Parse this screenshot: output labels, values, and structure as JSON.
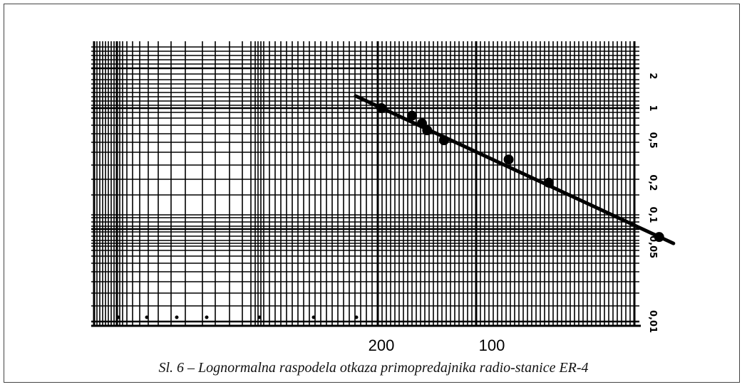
{
  "caption": "Sl. 6 – Lognormalna raspodela otkaza primopredajnika radio-stanice ER-4",
  "chart_data": {
    "type": "scatter",
    "title": "",
    "xlabel": "",
    "ylabel": "",
    "x_scale": "log",
    "x_axis_reversed": true,
    "x_tick_labels": [
      {
        "value": 200,
        "label": "200"
      },
      {
        "value": 100,
        "label": "100"
      }
    ],
    "y_scale": "log",
    "y_tick_labels": [
      {
        "value": 2,
        "label": "2"
      },
      {
        "value": 1,
        "label": "1"
      },
      {
        "value": 0.5,
        "label": "0,5"
      },
      {
        "value": 0.2,
        "label": "0,2"
      },
      {
        "value": 0.1,
        "label": "0,1"
      },
      {
        "value": 0.05,
        "label": "0,05"
      },
      {
        "value": 0.01,
        "label": "0,01"
      }
    ],
    "grid": true,
    "series": [
      {
        "kind": "points",
        "points": [
          {
            "x": 200,
            "y": 1.0
          },
          {
            "x": 165,
            "y": 0.85
          },
          {
            "x": 155,
            "y": 0.72
          },
          {
            "x": 150,
            "y": 0.62
          },
          {
            "x": 135,
            "y": 0.5
          },
          {
            "x": 90,
            "y": 0.33
          },
          {
            "x": 70,
            "y": 0.2
          },
          {
            "x": 35,
            "y": 0.062
          }
        ]
      },
      {
        "kind": "fit-line",
        "points": [
          {
            "x": 235,
            "y": 1.3
          },
          {
            "x": 32,
            "y": 0.054
          }
        ]
      }
    ],
    "colors": {
      "ink": "#000000",
      "background": "#ffffff"
    }
  }
}
